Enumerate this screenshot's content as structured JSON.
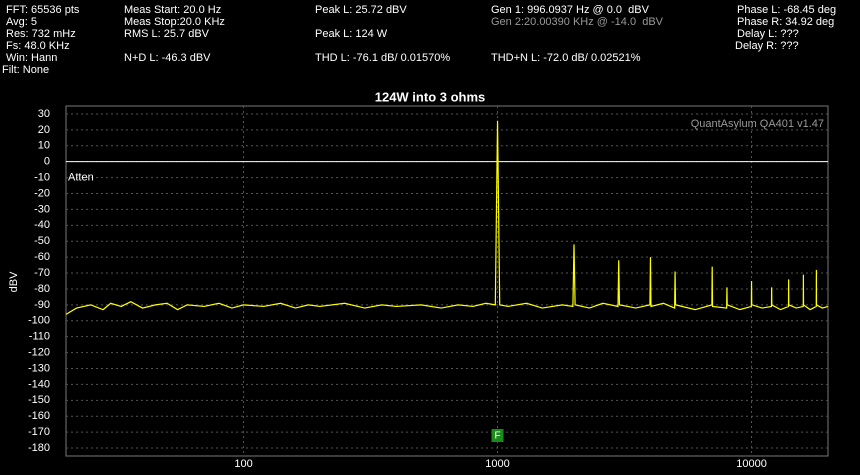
{
  "header": {
    "readouts": [
      "FFT: 65536 pts",
      "Avg: 5",
      "Res: 732 mHz",
      "Fs: 48.0 KHz",
      "Win: Hann",
      "Filt: None",
      "Meas Start: 20.0 Hz",
      "Meas Stop:20.0 KHz",
      "RMS L: 25.7 dBV",
      "N+D L: -46.3 dBV",
      "Peak L: 25.72 dBV",
      "Peak L: 124 W",
      "THD L: -76.1 dB/ 0.01570%",
      "Gen 1: 996.0937 Hz @ 0.0  dBV",
      "Gen 2:20.00390 KHz @ -14.0  dBV",
      "THD+N L: -72.0 dB/ 0.02521%",
      "Phase L: -68.45 deg",
      "Phase R: 34.92 deg",
      "Delay L: ???",
      "Delay R: ???"
    ]
  },
  "chart_data": {
    "type": "line",
    "title": "124W into 3 ohms",
    "y_label": "dBV",
    "watermark": "QuantAsylum QA401 v1.47",
    "reference_line": {
      "label": "Atten",
      "value": 0
    },
    "marker": {
      "label": "F",
      "x": 1000
    },
    "x_scale": "log",
    "grid": true,
    "xlim": [
      20,
      20000
    ],
    "ylim": [
      -185,
      35
    ],
    "xticks": [
      100,
      1000,
      10000
    ],
    "yticks": [
      30,
      20,
      10,
      0,
      -10,
      -20,
      -30,
      -40,
      -50,
      -60,
      -70,
      -80,
      -90,
      -100,
      -110,
      -120,
      -130,
      -140,
      -150,
      -160,
      -170,
      -180
    ],
    "series": [
      {
        "color": "#ffff00",
        "x": [
          20,
          22,
          25,
          28,
          30,
          33,
          36,
          40,
          45,
          50,
          55,
          60,
          70,
          80,
          90,
          100,
          120,
          140,
          160,
          180,
          200,
          250,
          300,
          350,
          400,
          500,
          600,
          700,
          800,
          900,
          980,
          1000,
          1020,
          1100,
          1300,
          1500,
          1800,
          1980,
          2000,
          2020,
          2300,
          2600,
          2980,
          3000,
          3020,
          3500,
          3980,
          4000,
          4020,
          4500,
          4980,
          5000,
          5020,
          6000,
          6980,
          7000,
          7020,
          7980,
          8000,
          8020,
          9000,
          9980,
          10000,
          10020,
          11000,
          11980,
          12000,
          12020,
          13000,
          13980,
          14000,
          14020,
          15000,
          15980,
          16000,
          16020,
          17000,
          17980,
          18000,
          18020,
          19000,
          20000
        ],
        "values": [
          -96,
          -92,
          -90,
          -93,
          -89,
          -91,
          -88,
          -92,
          -90,
          -89,
          -93,
          -90,
          -91,
          -89,
          -92,
          -90,
          -91,
          -89,
          -92,
          -90,
          -91,
          -89,
          -92,
          -90,
          -91,
          -90,
          -92,
          -90,
          -91,
          -89,
          -90,
          25.72,
          -90,
          -91,
          -89,
          -92,
          -90,
          -91,
          -52,
          -90,
          -92,
          -89,
          -91,
          -62,
          -90,
          -92,
          -90,
          -60,
          -91,
          -89,
          -92,
          -69,
          -90,
          -93,
          -90,
          -66,
          -91,
          -92,
          -79,
          -90,
          -93,
          -91,
          -75,
          -90,
          -92,
          -91,
          -79,
          -90,
          -93,
          -91,
          -74,
          -90,
          -92,
          -91,
          -71,
          -90,
          -93,
          -91,
          -68,
          -90,
          -92,
          -91
        ]
      }
    ]
  }
}
